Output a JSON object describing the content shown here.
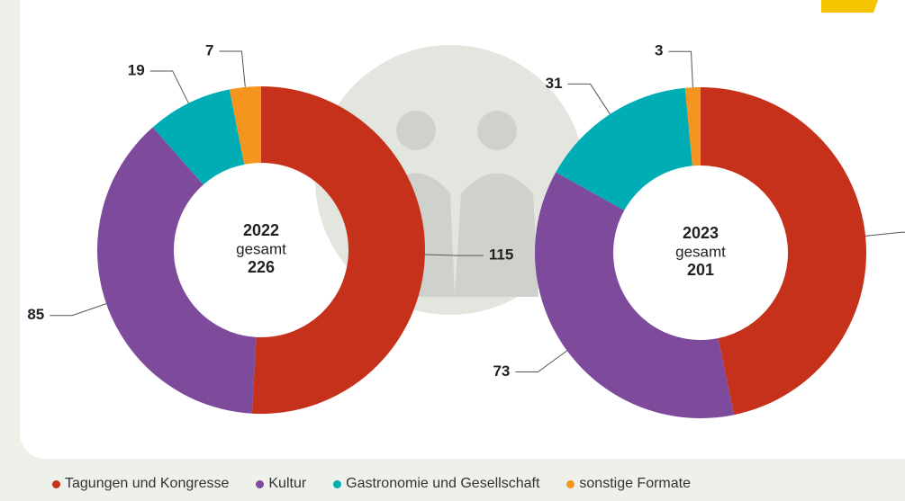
{
  "chart_data": [
    {
      "type": "pie",
      "donut": true,
      "title": "2022",
      "subtitle": "gesamt",
      "total": 226,
      "categories": [
        "Tagungen und Kongresse",
        "Kultur",
        "Gastronomie und Gesellschaft",
        "sonstige Formate"
      ],
      "values": [
        115,
        85,
        19,
        7
      ],
      "colors": [
        "#c5311a",
        "#7d4a9c",
        "#00adb5",
        "#f4951f"
      ]
    },
    {
      "type": "pie",
      "donut": true,
      "title": "2023",
      "subtitle": "gesamt",
      "total": 201,
      "categories": [
        "Tagungen und Kongresse",
        "Kultur",
        "Gastronomie und Gesellschaft",
        "sonstige Formate"
      ],
      "values": [
        94,
        73,
        31,
        3
      ],
      "colors": [
        "#c5311a",
        "#7d4a9c",
        "#00adb5",
        "#f4951f"
      ]
    }
  ]
}
